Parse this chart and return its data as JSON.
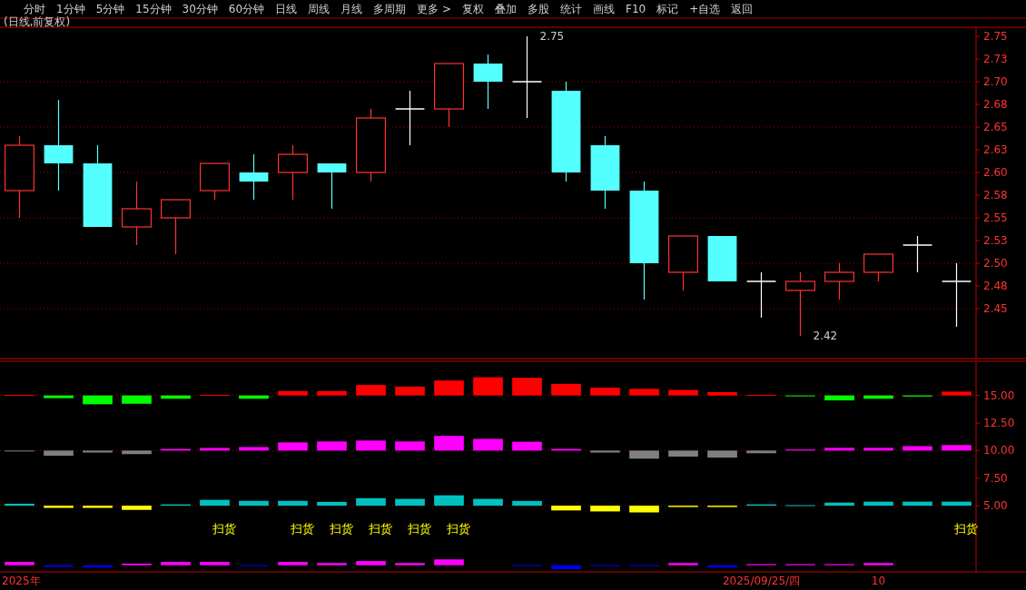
{
  "chart_data": [
    {
      "type": "other",
      "annotations": [
        "分时",
        "1分钟",
        "5分钟",
        "15分钟",
        "30分钟",
        "60分钟",
        "日线",
        "周线",
        "月线",
        "多周期",
        "更多 >",
        "复权",
        "叠加",
        "多股",
        "统计",
        "画线",
        "F10",
        "标记",
        "+自选",
        "返回"
      ]
    },
    {
      "type": "candlestick",
      "title": "(日线,前复权)",
      "tick_labels": "y",
      "categories": [
        null,
        null,
        null,
        null,
        null,
        null,
        null,
        null,
        null,
        null,
        null,
        null,
        null,
        null,
        null,
        null,
        null,
        null,
        null,
        null,
        null,
        null,
        null,
        null,
        null
      ],
      "ohlc": [
        [
          2.58,
          2.64,
          2.55,
          2.63
        ],
        [
          2.63,
          2.68,
          2.58,
          2.61
        ],
        [
          2.61,
          2.63,
          2.54,
          2.54
        ],
        [
          2.54,
          2.59,
          2.52,
          2.56
        ],
        [
          2.55,
          2.57,
          2.51,
          2.57
        ],
        [
          2.58,
          2.61,
          2.57,
          2.61
        ],
        [
          2.6,
          2.62,
          2.57,
          2.59
        ],
        [
          2.6,
          2.63,
          2.57,
          2.62
        ],
        [
          2.61,
          2.61,
          2.56,
          2.6
        ],
        [
          2.6,
          2.67,
          2.59,
          2.66
        ],
        [
          2.67,
          2.69,
          2.63,
          2.67
        ],
        [
          2.67,
          2.72,
          2.65,
          2.72
        ],
        [
          2.72,
          2.73,
          2.67,
          2.7
        ],
        [
          2.7,
          2.75,
          2.66,
          2.7
        ],
        [
          2.69,
          2.7,
          2.59,
          2.6
        ],
        [
          2.63,
          2.64,
          2.56,
          2.58
        ],
        [
          2.58,
          2.59,
          2.46,
          2.5
        ],
        [
          2.49,
          2.53,
          2.47,
          2.53
        ],
        [
          2.53,
          2.53,
          2.48,
          2.48
        ],
        [
          2.48,
          2.49,
          2.44,
          2.48
        ],
        [
          2.47,
          2.49,
          2.42,
          2.48
        ],
        [
          2.48,
          2.5,
          2.46,
          2.49
        ],
        [
          2.49,
          2.51,
          2.48,
          2.51
        ],
        [
          2.52,
          2.53,
          2.49,
          2.52
        ],
        [
          2.48,
          2.5,
          2.43,
          2.48
        ]
      ],
      "colors": [
        "#ff3232",
        "#54ffff",
        "#54ffff",
        "#ff3232",
        "#ff3232",
        "#ff3232",
        "#54ffff",
        "#ff3232",
        "#54ffff",
        "#ff3232",
        "#ffffff",
        "#ff3232",
        "#54ffff",
        "#ffffff",
        "#54ffff",
        "#54ffff",
        "#54ffff",
        "#ff3232",
        "#54ffff",
        "#ffffff",
        "#ff3232",
        "#ff3232",
        "#ff3232",
        "#ffffff",
        "#ffffff"
      ],
      "ylim": [
        2.395,
        2.76
      ],
      "yticks": [
        2.45,
        {
          "value": 2.475,
          "label": "2.48"
        },
        {
          "value": 2.5,
          "label": "2.50"
        },
        {
          "value": 2.525,
          "label": "2.53"
        },
        2.55,
        {
          "value": 2.575,
          "label": "2.58"
        },
        {
          "value": 2.6,
          "label": "2.60"
        },
        {
          "value": 2.625,
          "label": "2.63"
        },
        2.65,
        {
          "value": 2.675,
          "label": "2.68"
        },
        {
          "value": 2.7,
          "label": "2.70"
        },
        {
          "value": 2.725,
          "label": "2.73"
        },
        2.75
      ],
      "ref_lines": [
        {
          "axis": "y",
          "value": 2.45,
          "color": "#a00000",
          "line_style": "dotted"
        },
        {
          "axis": "y",
          "value": 2.5,
          "color": "#a00000",
          "line_style": "dotted"
        },
        {
          "axis": "y",
          "value": 2.55,
          "color": "#a00000",
          "line_style": "dotted"
        },
        {
          "axis": "y",
          "value": 2.6,
          "color": "#a00000",
          "line_style": "dotted"
        },
        {
          "axis": "y",
          "value": 2.65,
          "color": "#a00000",
          "line_style": "dotted"
        },
        {
          "axis": "y",
          "value": 2.7,
          "color": "#a00000",
          "line_style": "dotted"
        }
      ],
      "annotations": [
        "2.75",
        "2.42"
      ]
    },
    {
      "type": "bar",
      "categories": [
        "2025年",
        null,
        null,
        null,
        null,
        null,
        null,
        null,
        null,
        null,
        null,
        null,
        null,
        null,
        null,
        null,
        null,
        null,
        null,
        "2025/09/25/四",
        null,
        null,
        "10",
        null,
        null
      ],
      "ylim": [
        -1.0,
        18.1
      ],
      "yticks": [
        {
          "value": 5,
          "label": "5.00"
        },
        {
          "value": 7.5,
          "label": "7.50"
        },
        {
          "value": 10,
          "label": "10.00"
        },
        {
          "value": 12.5,
          "label": "12.50"
        },
        {
          "value": 15,
          "label": "15.00"
        }
      ],
      "ref_lines": [
        {
          "axis": "y",
          "value": 15,
          "color": "#a00000",
          "line_style": "dotted"
        },
        {
          "axis": "y",
          "value": 10,
          "color": "#a00000",
          "line_style": "dotted"
        },
        {
          "axis": "y",
          "value": 5,
          "color": "#a00000",
          "line_style": "dotted"
        }
      ],
      "series": [
        {
          "base": [
            15,
            15,
            15,
            15,
            15,
            15,
            15,
            15,
            15,
            15,
            15,
            15,
            15,
            15,
            15,
            15,
            15,
            15,
            15,
            15,
            15,
            15,
            15,
            15,
            15
          ],
          "values": [
            0.05,
            -0.25,
            -0.8,
            -0.75,
            -0.3,
            0.05,
            -0.3,
            0.4,
            0.4,
            0.95,
            0.8,
            1.35,
            1.65,
            1.6,
            1.05,
            0.7,
            0.6,
            0.5,
            0.3,
            0.05,
            -0.05,
            -0.45,
            -0.3,
            -0.1,
            0.35
          ],
          "colors": [
            "#ff0000",
            "#00ff00",
            "#00ff00",
            "#00ff00",
            "#00ff00",
            "#ff0000",
            "#00ff00",
            "#ff0000",
            "#ff0000",
            "#ff0000",
            "#ff0000",
            "#ff0000",
            "#ff0000",
            "#ff0000",
            "#ff0000",
            "#ff0000",
            "#ff0000",
            "#ff0000",
            "#ff0000",
            "#ff0000",
            "#00ff00",
            "#00ff00",
            "#00ff00",
            "#00ff00",
            "#ff0000"
          ]
        },
        {
          "base": [
            10,
            10,
            10,
            10,
            10,
            10,
            10,
            10,
            10,
            10,
            10,
            10,
            10,
            10,
            10,
            10,
            10,
            10,
            10,
            10,
            10,
            10,
            10,
            10,
            10
          ],
          "values": [
            -0.05,
            -0.47,
            -0.18,
            -0.32,
            0.15,
            0.24,
            0.32,
            0.74,
            0.83,
            0.91,
            0.83,
            1.33,
            1.06,
            0.8,
            0.15,
            -0.18,
            -0.73,
            -0.55,
            -0.64,
            -0.24,
            0.1,
            0.25,
            0.25,
            0.4,
            0.5
          ],
          "colors": [
            "#808080",
            "#808080",
            "#808080",
            "#808080",
            "#ff00ff",
            "#ff00ff",
            "#ff00ff",
            "#ff00ff",
            "#ff00ff",
            "#ff00ff",
            "#ff00ff",
            "#ff00ff",
            "#ff00ff",
            "#ff00ff",
            "#ff00ff",
            "#808080",
            "#808080",
            "#808080",
            "#808080",
            "#808080",
            "#ff00ff",
            "#ff00ff",
            "#ff00ff",
            "#ff00ff",
            "#ff00ff"
          ]
        },
        {
          "base": [
            5,
            5,
            5,
            5,
            5,
            5,
            5,
            5,
            5,
            5,
            5,
            5,
            5,
            5,
            5,
            5,
            5,
            5,
            5,
            5,
            5,
            5,
            5,
            5,
            5
          ],
          "values": [
            0.18,
            -0.2,
            -0.2,
            -0.38,
            0.12,
            0.53,
            0.44,
            0.44,
            0.35,
            0.68,
            0.62,
            0.94,
            0.62,
            0.43,
            -0.43,
            -0.52,
            -0.61,
            -0.12,
            -0.12,
            0.12,
            0.05,
            0.28,
            0.37,
            0.37,
            0.37
          ],
          "colors": [
            "#00c0c0",
            "#ffff00",
            "#ffff00",
            "#ffff00",
            "#00c0c0",
            "#00c0c0",
            "#00c0c0",
            "#00c0c0",
            "#00c0c0",
            "#00c0c0",
            "#00c0c0",
            "#00c0c0",
            "#00c0c0",
            "#00c0c0",
            "#ffff00",
            "#ffff00",
            "#ffff00",
            "#ffff00",
            "#ffff00",
            "#00c0c0",
            "#00c0c0",
            "#00c0c0",
            "#00c0c0",
            "#00c0c0",
            "#00c0c0"
          ],
          "value_labels": [
            null,
            null,
            null,
            null,
            null,
            "扫货",
            null,
            "扫货",
            "扫货",
            "扫货",
            "扫货",
            "扫货",
            null,
            null,
            null,
            null,
            null,
            null,
            null,
            null,
            null,
            null,
            null,
            null,
            "扫货"
          ]
        },
        {
          "base": [
            -0.4,
            -0.4,
            -0.4,
            -0.4,
            -0.4,
            -0.4,
            -0.4,
            -0.4,
            -0.4,
            -0.4,
            -0.4,
            -0.4,
            null,
            -0.4,
            -0.4,
            -0.4,
            -0.4,
            -0.4,
            -0.4,
            -0.4,
            -0.4,
            -0.4,
            -0.4,
            null,
            null
          ],
          "values": [
            0.3,
            -0.15,
            -0.2,
            0.15,
            0.3,
            0.3,
            -0.05,
            0.3,
            0.2,
            0.38,
            0.2,
            0.53,
            null,
            -0.05,
            -0.35,
            -0.07,
            -0.07,
            0.2,
            -0.2,
            0.1,
            0.1,
            0.1,
            0.2,
            null,
            null
          ],
          "colors": [
            "#ff00ff",
            "#0000ff",
            "#0000ff",
            "#ff00ff",
            "#ff00ff",
            "#ff00ff",
            "#0000ff",
            "#ff00ff",
            "#ff00ff",
            "#ff00ff",
            "#ff00ff",
            "#ff00ff",
            null,
            "#0000ff",
            "#0000ff",
            "#0000ff",
            "#0000ff",
            "#ff00ff",
            "#0000ff",
            "#ff00ff",
            "#ff00ff",
            "#ff00ff",
            "#ff00ff",
            null,
            null
          ]
        }
      ]
    }
  ]
}
